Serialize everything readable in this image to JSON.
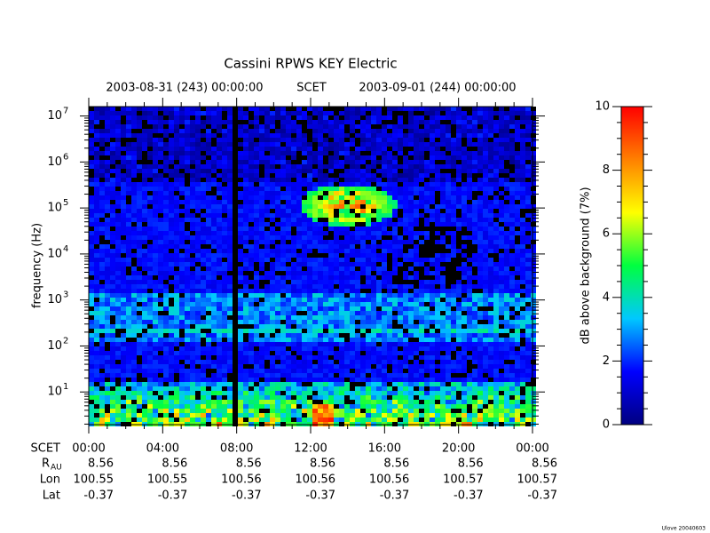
{
  "chart_data": {
    "type": "spectrogram",
    "title": "Cassini RPWS KEY Electric",
    "top_labels": [
      "2003-08-31 (243) 00:00:00",
      "SCET",
      "2003-09-01 (244) 00:00:00"
    ],
    "ylabel": "frequency (Hz)",
    "log_y": true,
    "ylim": [
      1.95,
      16000000
    ],
    "yticks": [
      {
        "value": 10,
        "label": "10",
        "exponent": "1"
      },
      {
        "value": 100,
        "label": "10",
        "exponent": "2"
      },
      {
        "value": 1000,
        "label": "10",
        "exponent": "3"
      },
      {
        "value": 10000,
        "label": "10",
        "exponent": "4"
      },
      {
        "value": 100000,
        "label": "10",
        "exponent": "5"
      },
      {
        "value": 1000000,
        "label": "10",
        "exponent": "6"
      },
      {
        "value": 10000000,
        "label": "10",
        "exponent": "7"
      }
    ],
    "xlabel": "SCET",
    "xlim": [
      0,
      24
    ],
    "xticks": [
      {
        "value": 0,
        "label": "00:00"
      },
      {
        "value": 4,
        "label": "04:00"
      },
      {
        "value": 8,
        "label": "08:00"
      },
      {
        "value": 12,
        "label": "12:00"
      },
      {
        "value": 16,
        "label": "16:00"
      },
      {
        "value": 20,
        "label": "20:00"
      },
      {
        "value": 24,
        "label": "00:00"
      }
    ],
    "ephemeris": [
      {
        "label": "R",
        "subscript": "AU",
        "values": [
          8.56,
          8.56,
          8.56,
          8.56,
          8.56,
          8.56,
          8.56
        ]
      },
      {
        "label": "Lon",
        "values": [
          100.55,
          100.55,
          100.56,
          100.56,
          100.56,
          100.57,
          100.57
        ]
      },
      {
        "label": "Lat",
        "values": [
          -0.37,
          -0.37,
          -0.37,
          -0.37,
          -0.37,
          -0.37,
          -0.37
        ]
      }
    ],
    "colorbar": {
      "label": "dB above background (7%)",
      "lim": [
        0,
        10
      ],
      "ticks": [
        0,
        2,
        4,
        6,
        8,
        10
      ],
      "colormap": [
        "#000080",
        "#0000ff",
        "#00c8ff",
        "#00ff40",
        "#ffff00",
        "#ff8000",
        "#ff0000"
      ]
    },
    "footer": "Ulove 20040603"
  }
}
